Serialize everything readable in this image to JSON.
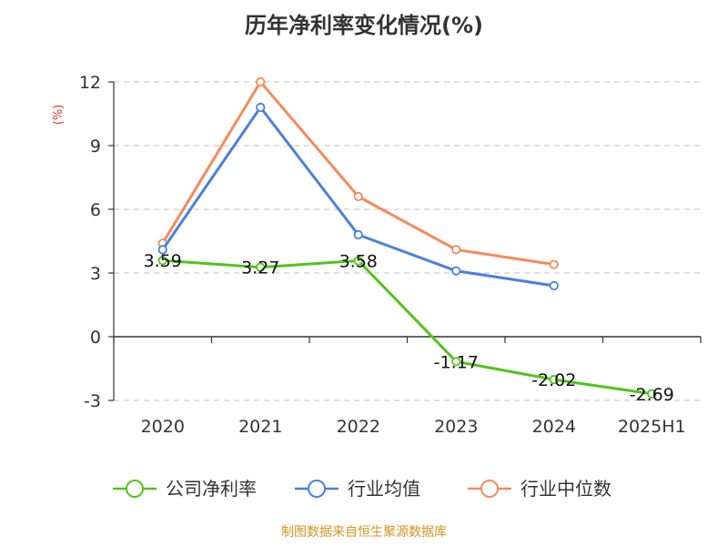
{
  "chart_data": {
    "type": "line",
    "title": "历年净利率变化情况(%)",
    "ylabel": "(%)",
    "categories": [
      "2020",
      "2021",
      "2022",
      "2023",
      "2024",
      "2025H1"
    ],
    "ylim": [
      -3,
      12
    ],
    "yticks": [
      -3,
      0,
      3,
      6,
      9,
      12
    ],
    "grid": true,
    "legend_position": "bottom",
    "series": [
      {
        "name": "公司净利率",
        "values": [
          3.59,
          3.27,
          3.58,
          -1.17,
          -2.02,
          -2.69
        ],
        "labels": [
          "3.59",
          "3.27",
          "3.58",
          "-1.17",
          "-2.02",
          "-2.69"
        ],
        "color": "#52c41a"
      },
      {
        "name": "行业均值",
        "values": [
          4.1,
          10.8,
          4.8,
          3.1,
          2.4,
          null
        ],
        "color": "#4a7fe0"
      },
      {
        "name": "行业中位数",
        "values": [
          4.4,
          12.0,
          6.6,
          4.1,
          3.4,
          null
        ],
        "color": "#f8895a"
      }
    ]
  },
  "source": "制图数据来自恒生聚源数据库",
  "colors": {
    "unit": "#e8322e",
    "source": "#d4941e",
    "axis": "#333333",
    "grid": "#cccccc"
  }
}
